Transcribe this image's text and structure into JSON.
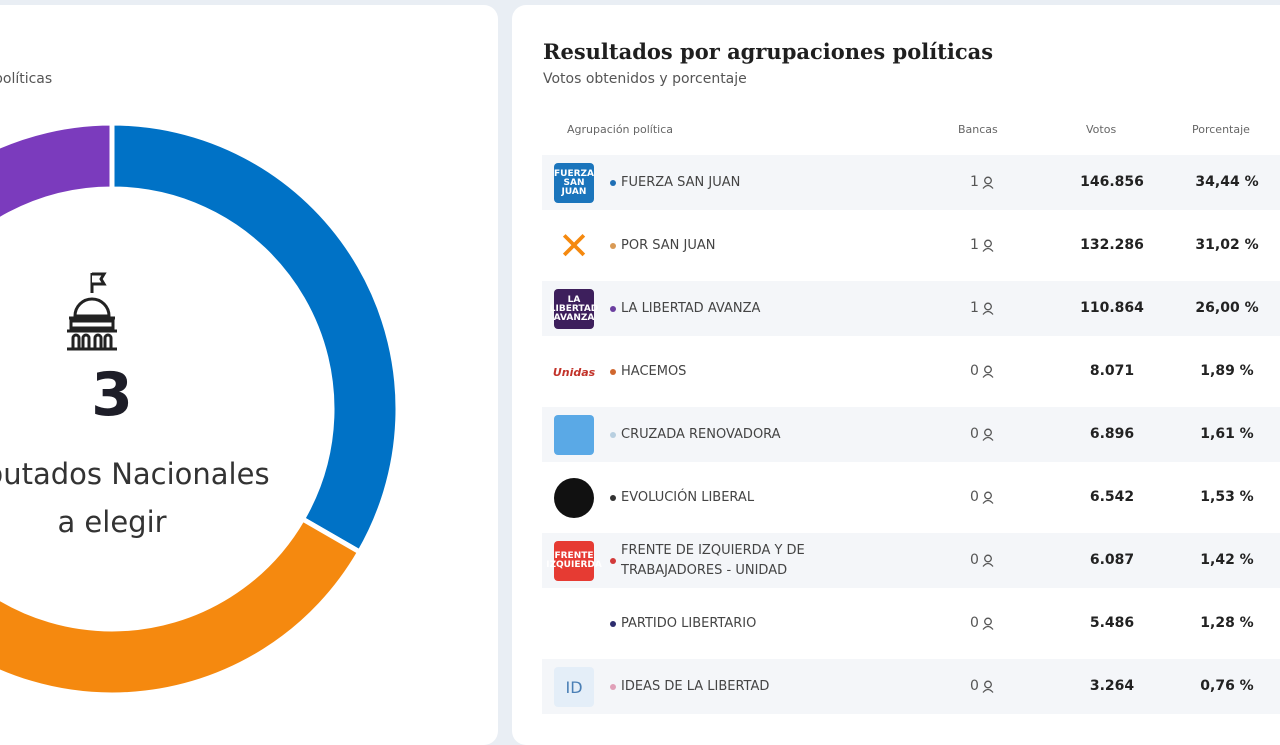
{
  "left_panel": {
    "subtitle": "políticas",
    "seats_total": "3",
    "seats_label": "Diputados Nacionales",
    "seats_label2": "a elegir"
  },
  "chart_data": {
    "type": "pie",
    "title": "",
    "categories": [
      "FUERZA SAN JUAN",
      "POR SAN JUAN",
      "LA LIBERTAD AVANZA"
    ],
    "values": [
      1,
      1,
      1
    ],
    "colors": [
      "#0072c6",
      "#f5890f",
      "#7b3bbd"
    ],
    "donut": true
  },
  "right_panel": {
    "title": "Resultados por agrupaciones políticas",
    "subtitle": "Votos obtenidos y porcentaje",
    "headers": {
      "party": "Agrupación política",
      "seats": "Bancas",
      "votes": "Votos",
      "percent": "Porcentaje"
    },
    "rows": [
      {
        "name": "FUERZA SAN JUAN",
        "seats": "1",
        "votes": "146.856",
        "percent": "34,44 %",
        "dot": "#1f6fb5",
        "logo_bg": "#1b75bc",
        "logo_text": "FUERZA SAN JUAN"
      },
      {
        "name": "POR SAN JUAN",
        "seats": "1",
        "votes": "132.286",
        "percent": "31,02 %",
        "dot": "#d99a55",
        "logo_bg": "#ffffff",
        "logo_text": "✕"
      },
      {
        "name": "LA LIBERTAD AVANZA",
        "seats": "1",
        "votes": "110.864",
        "percent": "26,00 %",
        "dot": "#6b3fa0",
        "logo_bg": "#3d1f5c",
        "logo_text": "LA LIBERTAD AVANZA"
      },
      {
        "name": "HACEMOS",
        "seats": "0",
        "votes": "8.071",
        "percent": "1,89 %",
        "dot": "#d0672e",
        "logo_bg": "#ffffff",
        "logo_text": "Unidas"
      },
      {
        "name": "CRUZADA RENOVADORA",
        "seats": "0",
        "votes": "6.896",
        "percent": "1,61 %",
        "dot": "#b8cfe0",
        "logo_bg": "#5aa9e6",
        "logo_text": ""
      },
      {
        "name": "EVOLUCIÓN LIBERAL",
        "seats": "0",
        "votes": "6.542",
        "percent": "1,53 %",
        "dot": "#333333",
        "logo_bg": "#111111",
        "logo_text": ""
      },
      {
        "name": "FRENTE DE IZQUIERDA Y DE TRABAJADORES - UNIDAD",
        "seats": "0",
        "votes": "6.087",
        "percent": "1,42 %",
        "dot": "#d23a3a",
        "logo_bg": "#e63b33",
        "logo_text": "FRENTE IZQUIERDA"
      },
      {
        "name": "PARTIDO LIBERTARIO",
        "seats": "0",
        "votes": "5.486",
        "percent": "1,28 %",
        "dot": "#2d2d6e",
        "logo_bg": "#ffffff",
        "logo_text": ""
      },
      {
        "name": "IDEAS DE LA LIBERTAD",
        "seats": "0",
        "votes": "3.264",
        "percent": "0,76 %",
        "dot": "#e0a0b8",
        "logo_bg": "#e4eef8",
        "logo_text": "ID"
      }
    ]
  }
}
